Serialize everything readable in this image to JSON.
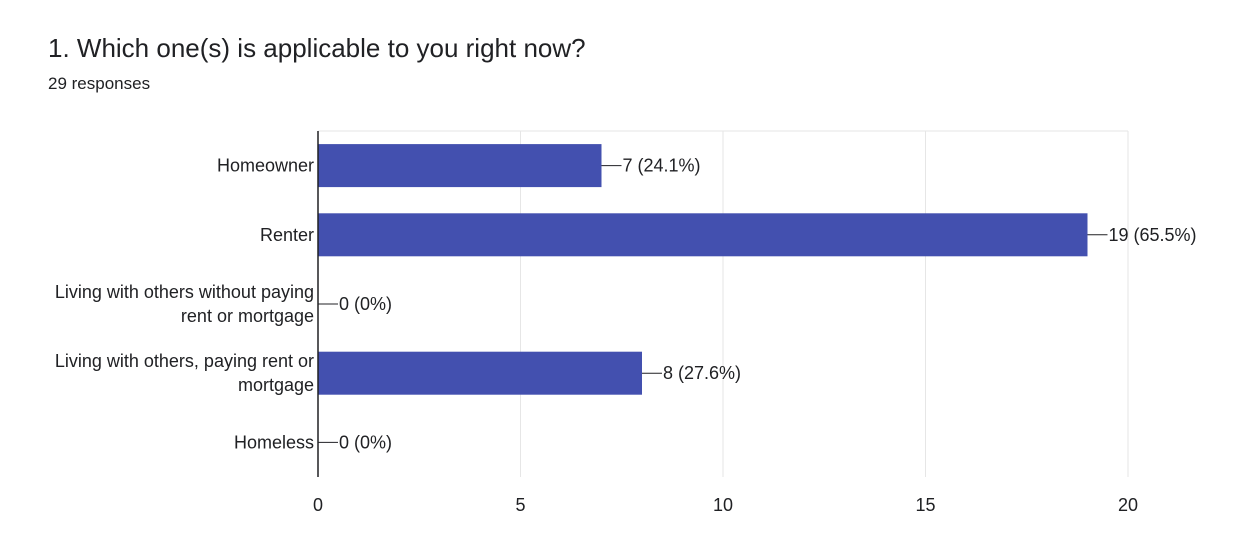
{
  "question": {
    "title": "1. Which one(s) is applicable to you right now?",
    "responses": "29 responses"
  },
  "colors": {
    "bar": "#4350AF",
    "grid": "#E6E6E6",
    "axis": "#202124",
    "text": "#202124"
  },
  "chart_data": {
    "type": "bar",
    "orientation": "horizontal",
    "categories": [
      [
        "Homeowner"
      ],
      [
        "Renter"
      ],
      [
        "Living with others without paying",
        "rent or mortgage"
      ],
      [
        "Living with others, paying rent or",
        "mortgage"
      ],
      [
        "Homeless"
      ]
    ],
    "values": [
      7,
      19,
      0,
      8,
      0
    ],
    "value_labels": [
      "7 (24.1%)",
      "19 (65.5%)",
      "0 (0%)",
      "8 (27.6%)",
      "0 (0%)"
    ],
    "xlim": [
      0,
      20
    ],
    "x_ticks": [
      0,
      5,
      10,
      15,
      20
    ],
    "grid": true,
    "legend": "none"
  }
}
